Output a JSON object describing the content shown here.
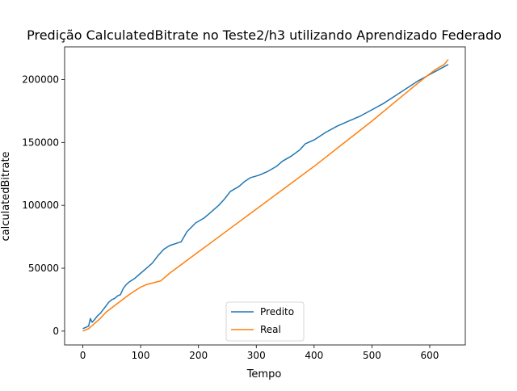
{
  "chart_data": {
    "type": "line",
    "title": "Predição CalculatedBitrate no Teste2/h3 utilizando Aprendizado Federado",
    "xlabel": "Tempo",
    "ylabel": "calculatedBitrate",
    "xlim": [
      -31.5,
      661.5
    ],
    "ylim": [
      -11000,
      226000
    ],
    "xticks": [
      0,
      100,
      200,
      300,
      400,
      500,
      600
    ],
    "xtick_labels": [
      "0",
      "100",
      "200",
      "300",
      "400",
      "500",
      "600"
    ],
    "yticks": [
      0,
      50000,
      100000,
      150000,
      200000
    ],
    "ytick_labels": [
      "0",
      "50000",
      "100000",
      "150000",
      "200000"
    ],
    "grid": false,
    "legend": {
      "placement": "lower center",
      "entries": [
        "Predito",
        "Real"
      ]
    },
    "series": [
      {
        "name": "Predito",
        "color": "#1f77b4",
        "points": [
          [
            0,
            2000
          ],
          [
            10,
            4000
          ],
          [
            13,
            10000
          ],
          [
            16,
            7000
          ],
          [
            20,
            9000
          ],
          [
            25,
            12000
          ],
          [
            30,
            14000
          ],
          [
            35,
            17000
          ],
          [
            40,
            20000
          ],
          [
            45,
            23000
          ],
          [
            50,
            25000
          ],
          [
            55,
            26000
          ],
          [
            60,
            28000
          ],
          [
            65,
            29000
          ],
          [
            70,
            34000
          ],
          [
            75,
            37000
          ],
          [
            80,
            39000
          ],
          [
            90,
            42000
          ],
          [
            100,
            46000
          ],
          [
            110,
            50000
          ],
          [
            120,
            54000
          ],
          [
            130,
            60000
          ],
          [
            140,
            65000
          ],
          [
            150,
            68000
          ],
          [
            170,
            71000
          ],
          [
            180,
            79000
          ],
          [
            195,
            86000
          ],
          [
            210,
            90000
          ],
          [
            220,
            94000
          ],
          [
            235,
            100000
          ],
          [
            245,
            105000
          ],
          [
            255,
            111000
          ],
          [
            270,
            115000
          ],
          [
            280,
            119000
          ],
          [
            290,
            122000
          ],
          [
            305,
            124000
          ],
          [
            320,
            127000
          ],
          [
            335,
            131000
          ],
          [
            345,
            135000
          ],
          [
            360,
            139000
          ],
          [
            375,
            144000
          ],
          [
            385,
            149000
          ],
          [
            400,
            152000
          ],
          [
            420,
            158000
          ],
          [
            440,
            163000
          ],
          [
            460,
            167000
          ],
          [
            480,
            171000
          ],
          [
            500,
            176000
          ],
          [
            520,
            181000
          ],
          [
            540,
            187000
          ],
          [
            560,
            193000
          ],
          [
            580,
            199000
          ],
          [
            600,
            204000
          ],
          [
            620,
            209000
          ],
          [
            632,
            212000
          ]
        ]
      },
      {
        "name": "Real",
        "color": "#ff7f0e",
        "points": [
          [
            0,
            0
          ],
          [
            10,
            2000
          ],
          [
            20,
            6000
          ],
          [
            30,
            10000
          ],
          [
            40,
            15000
          ],
          [
            60,
            22000
          ],
          [
            80,
            29000
          ],
          [
            100,
            35000
          ],
          [
            110,
            37000
          ],
          [
            135,
            40000
          ],
          [
            150,
            46000
          ],
          [
            200,
            63000
          ],
          [
            250,
            80000
          ],
          [
            300,
            97000
          ],
          [
            350,
            114000
          ],
          [
            400,
            131000
          ],
          [
            450,
            149000
          ],
          [
            500,
            167000
          ],
          [
            550,
            186000
          ],
          [
            590,
            201000
          ],
          [
            610,
            208000
          ],
          [
            625,
            212000
          ],
          [
            632,
            216000
          ]
        ]
      }
    ]
  }
}
